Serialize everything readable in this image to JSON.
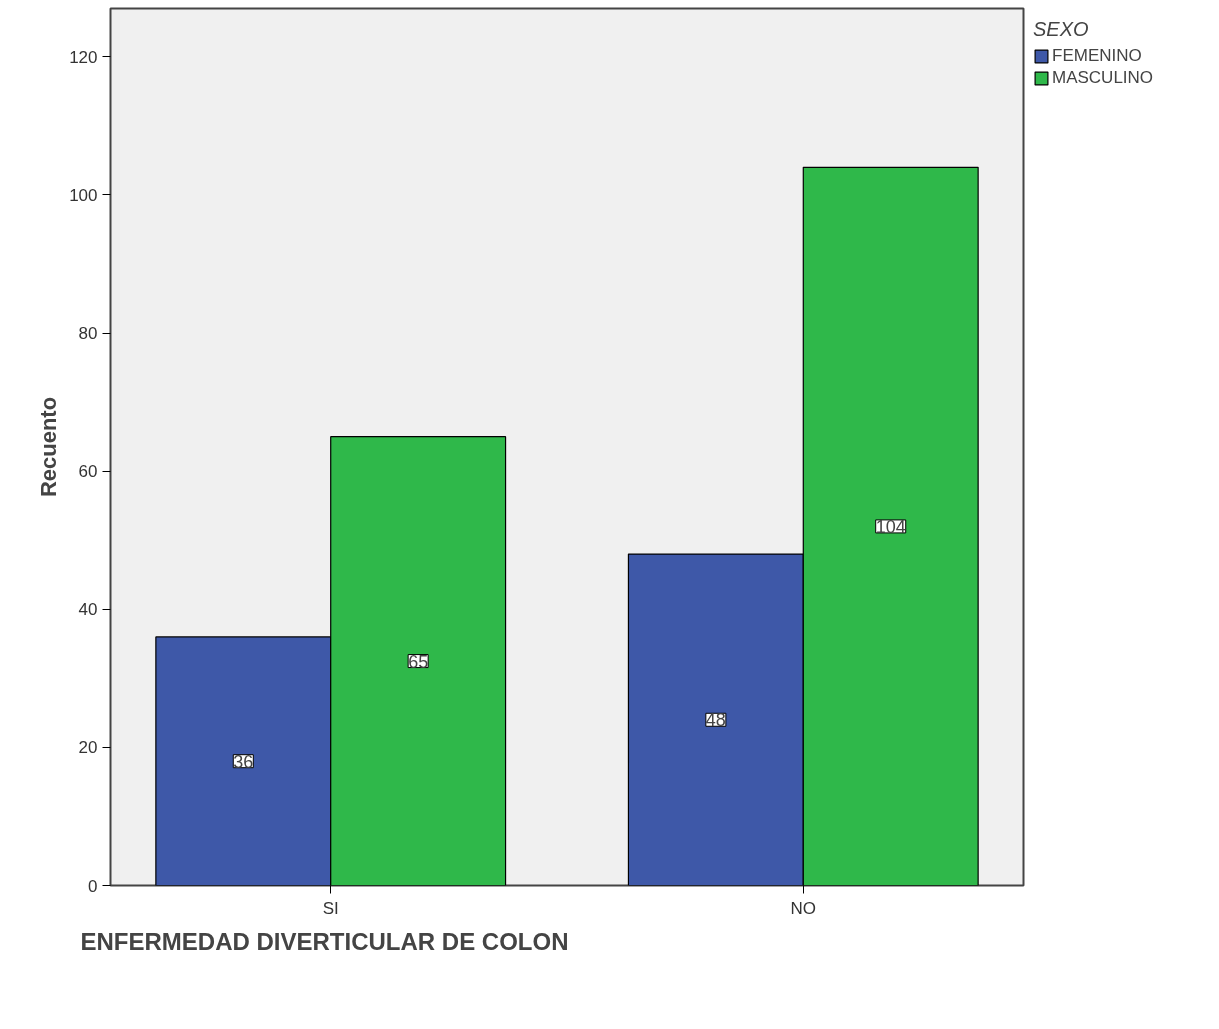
{
  "chart_data": {
    "type": "bar",
    "xlabel": "ENFERMEDAD DIVERTICULAR DE COLON",
    "ylabel": "Recuento",
    "legend_title": "SEXO",
    "categories": [
      "SI",
      "NO"
    ],
    "series": [
      {
        "name": "FEMENINO",
        "color": "#3e58a8",
        "values": [
          36,
          48
        ]
      },
      {
        "name": "MASCULINO",
        "color": "#2fb84a",
        "values": [
          65,
          104
        ]
      }
    ],
    "ylim": [
      0,
      127
    ],
    "yticks": [
      0,
      20,
      40,
      60,
      80,
      100,
      120
    ],
    "grid": false,
    "legend": "top right",
    "data_labels": true
  }
}
